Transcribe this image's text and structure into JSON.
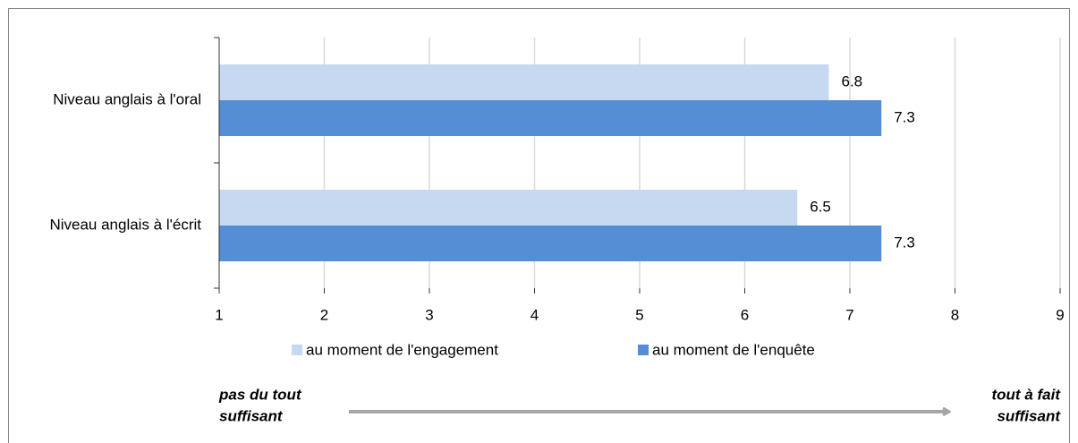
{
  "chart_data": {
    "type": "hbar",
    "categories": [
      "Niveau anglais à l'oral",
      "Niveau anglais à l'écrit"
    ],
    "series": [
      {
        "name": "au moment de l'engagement",
        "color": "#c6d9f1",
        "values": [
          6.8,
          6.5
        ]
      },
      {
        "name": "au moment de l'enquête",
        "color": "#558ed5",
        "values": [
          7.3,
          7.3
        ]
      }
    ],
    "xlim": [
      1,
      9
    ],
    "xticks": [
      1,
      2,
      3,
      4,
      5,
      6,
      7,
      8,
      9
    ],
    "grid": true,
    "annotations": {
      "left": [
        "pas du tout",
        "suffisant"
      ],
      "right": [
        "tout à fait",
        "suffisant"
      ]
    }
  }
}
